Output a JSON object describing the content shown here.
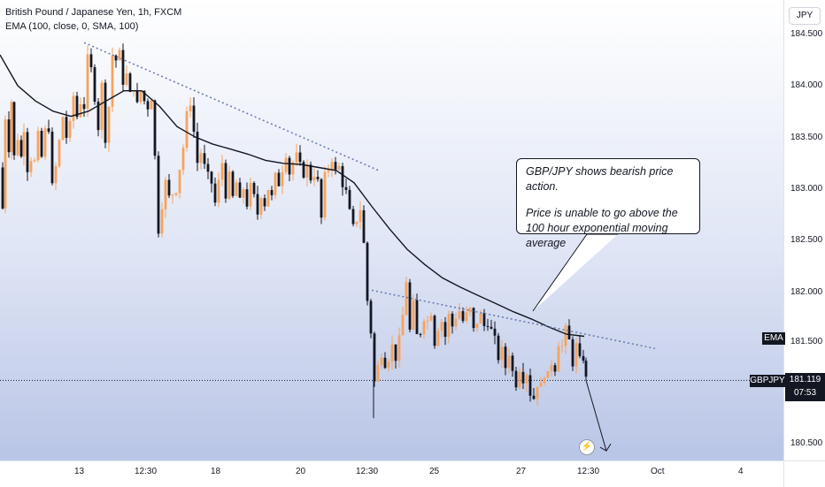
{
  "legend": {
    "symbol_line": "British Pound / Japanese Yen, 1h, FXCM",
    "indicator_line": "EMA (100, close, 0, SMA, 100)"
  },
  "price_axis": {
    "currency": "JPY",
    "ticks": [
      "184.500",
      "184.000",
      "183.500",
      "183.000",
      "182.500",
      "182.000",
      "181.500",
      "180.500"
    ]
  },
  "time_axis": {
    "ticks": [
      "13",
      "12:30",
      "18",
      "20",
      "12:30",
      "25",
      "27",
      "12:30",
      "Oct",
      "4"
    ]
  },
  "tags": {
    "ema_label": "EMA",
    "symbol_label": "GBPJPY",
    "last_price": "181.119",
    "countdown": "07:53"
  },
  "annotation": {
    "line1": "GBP/JPY shows bearish price action.",
    "line2": "Price is unable to go above the 100 hour exponential moving average"
  },
  "icons": {
    "flash": "lightning-icon"
  },
  "colors": {
    "bull": "#f7a35c",
    "bear": "#131722",
    "ema": "#131722",
    "trendline": "#6a7cb0"
  },
  "chart_data": {
    "type": "candlestick",
    "symbol": "GBPJPY",
    "timeframe": "1h",
    "ylim": [
      180.35,
      184.65
    ],
    "last_price": 181.119,
    "close_path": [
      [
        0,
        183.2
      ],
      [
        3,
        182.8
      ],
      [
        6,
        183.7
      ],
      [
        10,
        183.4
      ],
      [
        13,
        183.85
      ],
      [
        16,
        183.3
      ],
      [
        20,
        183.5
      ],
      [
        24,
        183.3
      ],
      [
        27,
        183.6
      ],
      [
        31,
        183.2
      ],
      [
        35,
        183.3
      ],
      [
        39,
        183.25
      ],
      [
        43,
        183.5
      ],
      [
        47,
        183.3
      ],
      [
        51,
        183.55
      ],
      [
        55,
        183.6
      ],
      [
        59,
        183.0
      ],
      [
        63,
        183.2
      ],
      [
        67,
        183.45
      ],
      [
        71,
        183.7
      ],
      [
        75,
        183.5
      ],
      [
        79,
        183.6
      ],
      [
        83,
        183.9
      ],
      [
        87,
        183.7
      ],
      [
        91,
        183.85
      ],
      [
        95,
        183.8
      ],
      [
        99,
        184.25
      ],
      [
        103,
        184.15
      ],
      [
        107,
        183.9
      ],
      [
        111,
        183.6
      ],
      [
        115,
        184.0
      ],
      [
        119,
        183.5
      ],
      [
        123,
        183.8
      ],
      [
        127,
        184.3
      ],
      [
        131,
        184.25
      ],
      [
        135,
        184.3
      ],
      [
        139,
        184.05
      ],
      [
        143,
        184.1
      ],
      [
        147,
        183.9
      ],
      [
        151,
        184.0
      ],
      [
        155,
        183.8
      ],
      [
        159,
        183.95
      ],
      [
        163,
        183.85
      ],
      [
        167,
        183.8
      ],
      [
        171,
        183.9
      ],
      [
        175,
        183.3
      ],
      [
        179,
        182.6
      ],
      [
        183,
        182.85
      ],
      [
        187,
        183.05
      ],
      [
        191,
        182.9
      ],
      [
        195,
        182.95
      ],
      [
        199,
        183.0
      ],
      [
        203,
        183.2
      ],
      [
        207,
        183.4
      ],
      [
        211,
        183.7
      ],
      [
        215,
        183.85
      ],
      [
        219,
        183.55
      ],
      [
        223,
        183.25
      ],
      [
        227,
        183.35
      ],
      [
        231,
        183.2
      ],
      [
        235,
        183.1
      ],
      [
        239,
        183.05
      ],
      [
        243,
        182.85
      ],
      [
        247,
        183.05
      ],
      [
        251,
        183.25
      ],
      [
        255,
        182.95
      ],
      [
        259,
        183.1
      ],
      [
        263,
        182.9
      ],
      [
        267,
        183.05
      ],
      [
        271,
        182.85
      ],
      [
        275,
        183.0
      ],
      [
        279,
        182.85
      ],
      [
        283,
        183.0
      ],
      [
        287,
        182.9
      ],
      [
        291,
        182.75
      ],
      [
        295,
        182.95
      ],
      [
        299,
        182.85
      ],
      [
        303,
        183.0
      ],
      [
        307,
        182.9
      ],
      [
        311,
        183.1
      ],
      [
        315,
        183.05
      ],
      [
        319,
        183.2
      ],
      [
        323,
        183.35
      ],
      [
        327,
        183.15
      ],
      [
        331,
        183.25
      ],
      [
        335,
        183.3
      ],
      [
        339,
        183.2
      ],
      [
        343,
        183.15
      ],
      [
        347,
        183.2
      ],
      [
        351,
        183.1
      ],
      [
        355,
        183.15
      ],
      [
        359,
        183.05
      ],
      [
        363,
        182.7
      ],
      [
        367,
        183.1
      ],
      [
        371,
        183.2
      ],
      [
        375,
        183.3
      ],
      [
        379,
        183.15
      ],
      [
        383,
        183.2
      ],
      [
        387,
        183.05
      ],
      [
        391,
        182.95
      ],
      [
        395,
        182.75
      ],
      [
        399,
        182.6
      ],
      [
        403,
        182.7
      ],
      [
        407,
        182.8
      ],
      [
        411,
        182.45
      ],
      [
        415,
        181.9
      ],
      [
        419,
        181.6
      ],
      [
        423,
        181.1
      ],
      [
        427,
        181.25
      ],
      [
        431,
        181.4
      ],
      [
        435,
        181.3
      ],
      [
        439,
        181.35
      ],
      [
        443,
        181.45
      ],
      [
        447,
        181.35
      ],
      [
        451,
        181.5
      ],
      [
        455,
        181.75
      ],
      [
        459,
        182.1
      ],
      [
        463,
        181.6
      ],
      [
        467,
        181.85
      ],
      [
        471,
        181.55
      ],
      [
        475,
        181.6
      ],
      [
        479,
        181.75
      ],
      [
        483,
        181.7
      ],
      [
        487,
        181.8
      ],
      [
        491,
        181.5
      ],
      [
        495,
        181.65
      ],
      [
        499,
        181.7
      ],
      [
        503,
        181.55
      ],
      [
        507,
        181.75
      ],
      [
        511,
        181.65
      ],
      [
        515,
        181.75
      ],
      [
        519,
        181.8
      ],
      [
        523,
        181.7
      ],
      [
        527,
        181.75
      ],
      [
        531,
        181.8
      ],
      [
        535,
        181.6
      ],
      [
        539,
        181.7
      ],
      [
        543,
        181.75
      ],
      [
        547,
        181.65
      ],
      [
        551,
        181.7
      ],
      [
        555,
        181.6
      ],
      [
        559,
        181.5
      ],
      [
        563,
        181.35
      ],
      [
        567,
        181.4
      ],
      [
        571,
        181.25
      ],
      [
        575,
        181.4
      ],
      [
        579,
        181.2
      ],
      [
        583,
        181.1
      ],
      [
        587,
        181.25
      ],
      [
        591,
        181.15
      ],
      [
        595,
        181.2
      ],
      [
        599,
        181.0
      ],
      [
        603,
        180.95
      ],
      [
        607,
        181.1
      ],
      [
        611,
        181.05
      ],
      [
        615,
        181.2
      ],
      [
        619,
        181.15
      ],
      [
        623,
        181.3
      ],
      [
        627,
        181.25
      ],
      [
        631,
        181.5
      ],
      [
        635,
        181.45
      ],
      [
        639,
        181.6
      ],
      [
        643,
        181.5
      ],
      [
        647,
        181.3
      ],
      [
        651,
        181.45
      ],
      [
        655,
        181.3
      ],
      [
        659,
        181.35
      ],
      [
        662,
        181.119
      ]
    ],
    "ema_path": [
      [
        0,
        184.3
      ],
      [
        20,
        184.0
      ],
      [
        40,
        183.85
      ],
      [
        60,
        183.75
      ],
      [
        80,
        183.7
      ],
      [
        100,
        183.75
      ],
      [
        120,
        183.85
      ],
      [
        140,
        183.95
      ],
      [
        160,
        183.95
      ],
      [
        180,
        183.8
      ],
      [
        200,
        183.6
      ],
      [
        220,
        183.5
      ],
      [
        240,
        183.43
      ],
      [
        260,
        183.38
      ],
      [
        280,
        183.33
      ],
      [
        300,
        183.27
      ],
      [
        320,
        183.24
      ],
      [
        340,
        183.23
      ],
      [
        360,
        183.2
      ],
      [
        380,
        183.17
      ],
      [
        400,
        183.05
      ],
      [
        420,
        182.82
      ],
      [
        440,
        182.6
      ],
      [
        460,
        182.4
      ],
      [
        480,
        182.25
      ],
      [
        500,
        182.12
      ],
      [
        520,
        182.03
      ],
      [
        540,
        181.95
      ],
      [
        560,
        181.87
      ],
      [
        580,
        181.79
      ],
      [
        600,
        181.72
      ],
      [
        620,
        181.64
      ],
      [
        640,
        181.57
      ],
      [
        660,
        181.55
      ]
    ],
    "trendlines": [
      {
        "x1": 95,
        "y1": 184.42,
        "x2": 428,
        "y2": 183.17
      },
      {
        "x1": 420,
        "y1": 182.0,
        "x2": 740,
        "y2": 181.43
      }
    ],
    "projection": {
      "x1": 662,
      "y1": 181.12,
      "x2": 685,
      "y2": 180.43
    }
  }
}
